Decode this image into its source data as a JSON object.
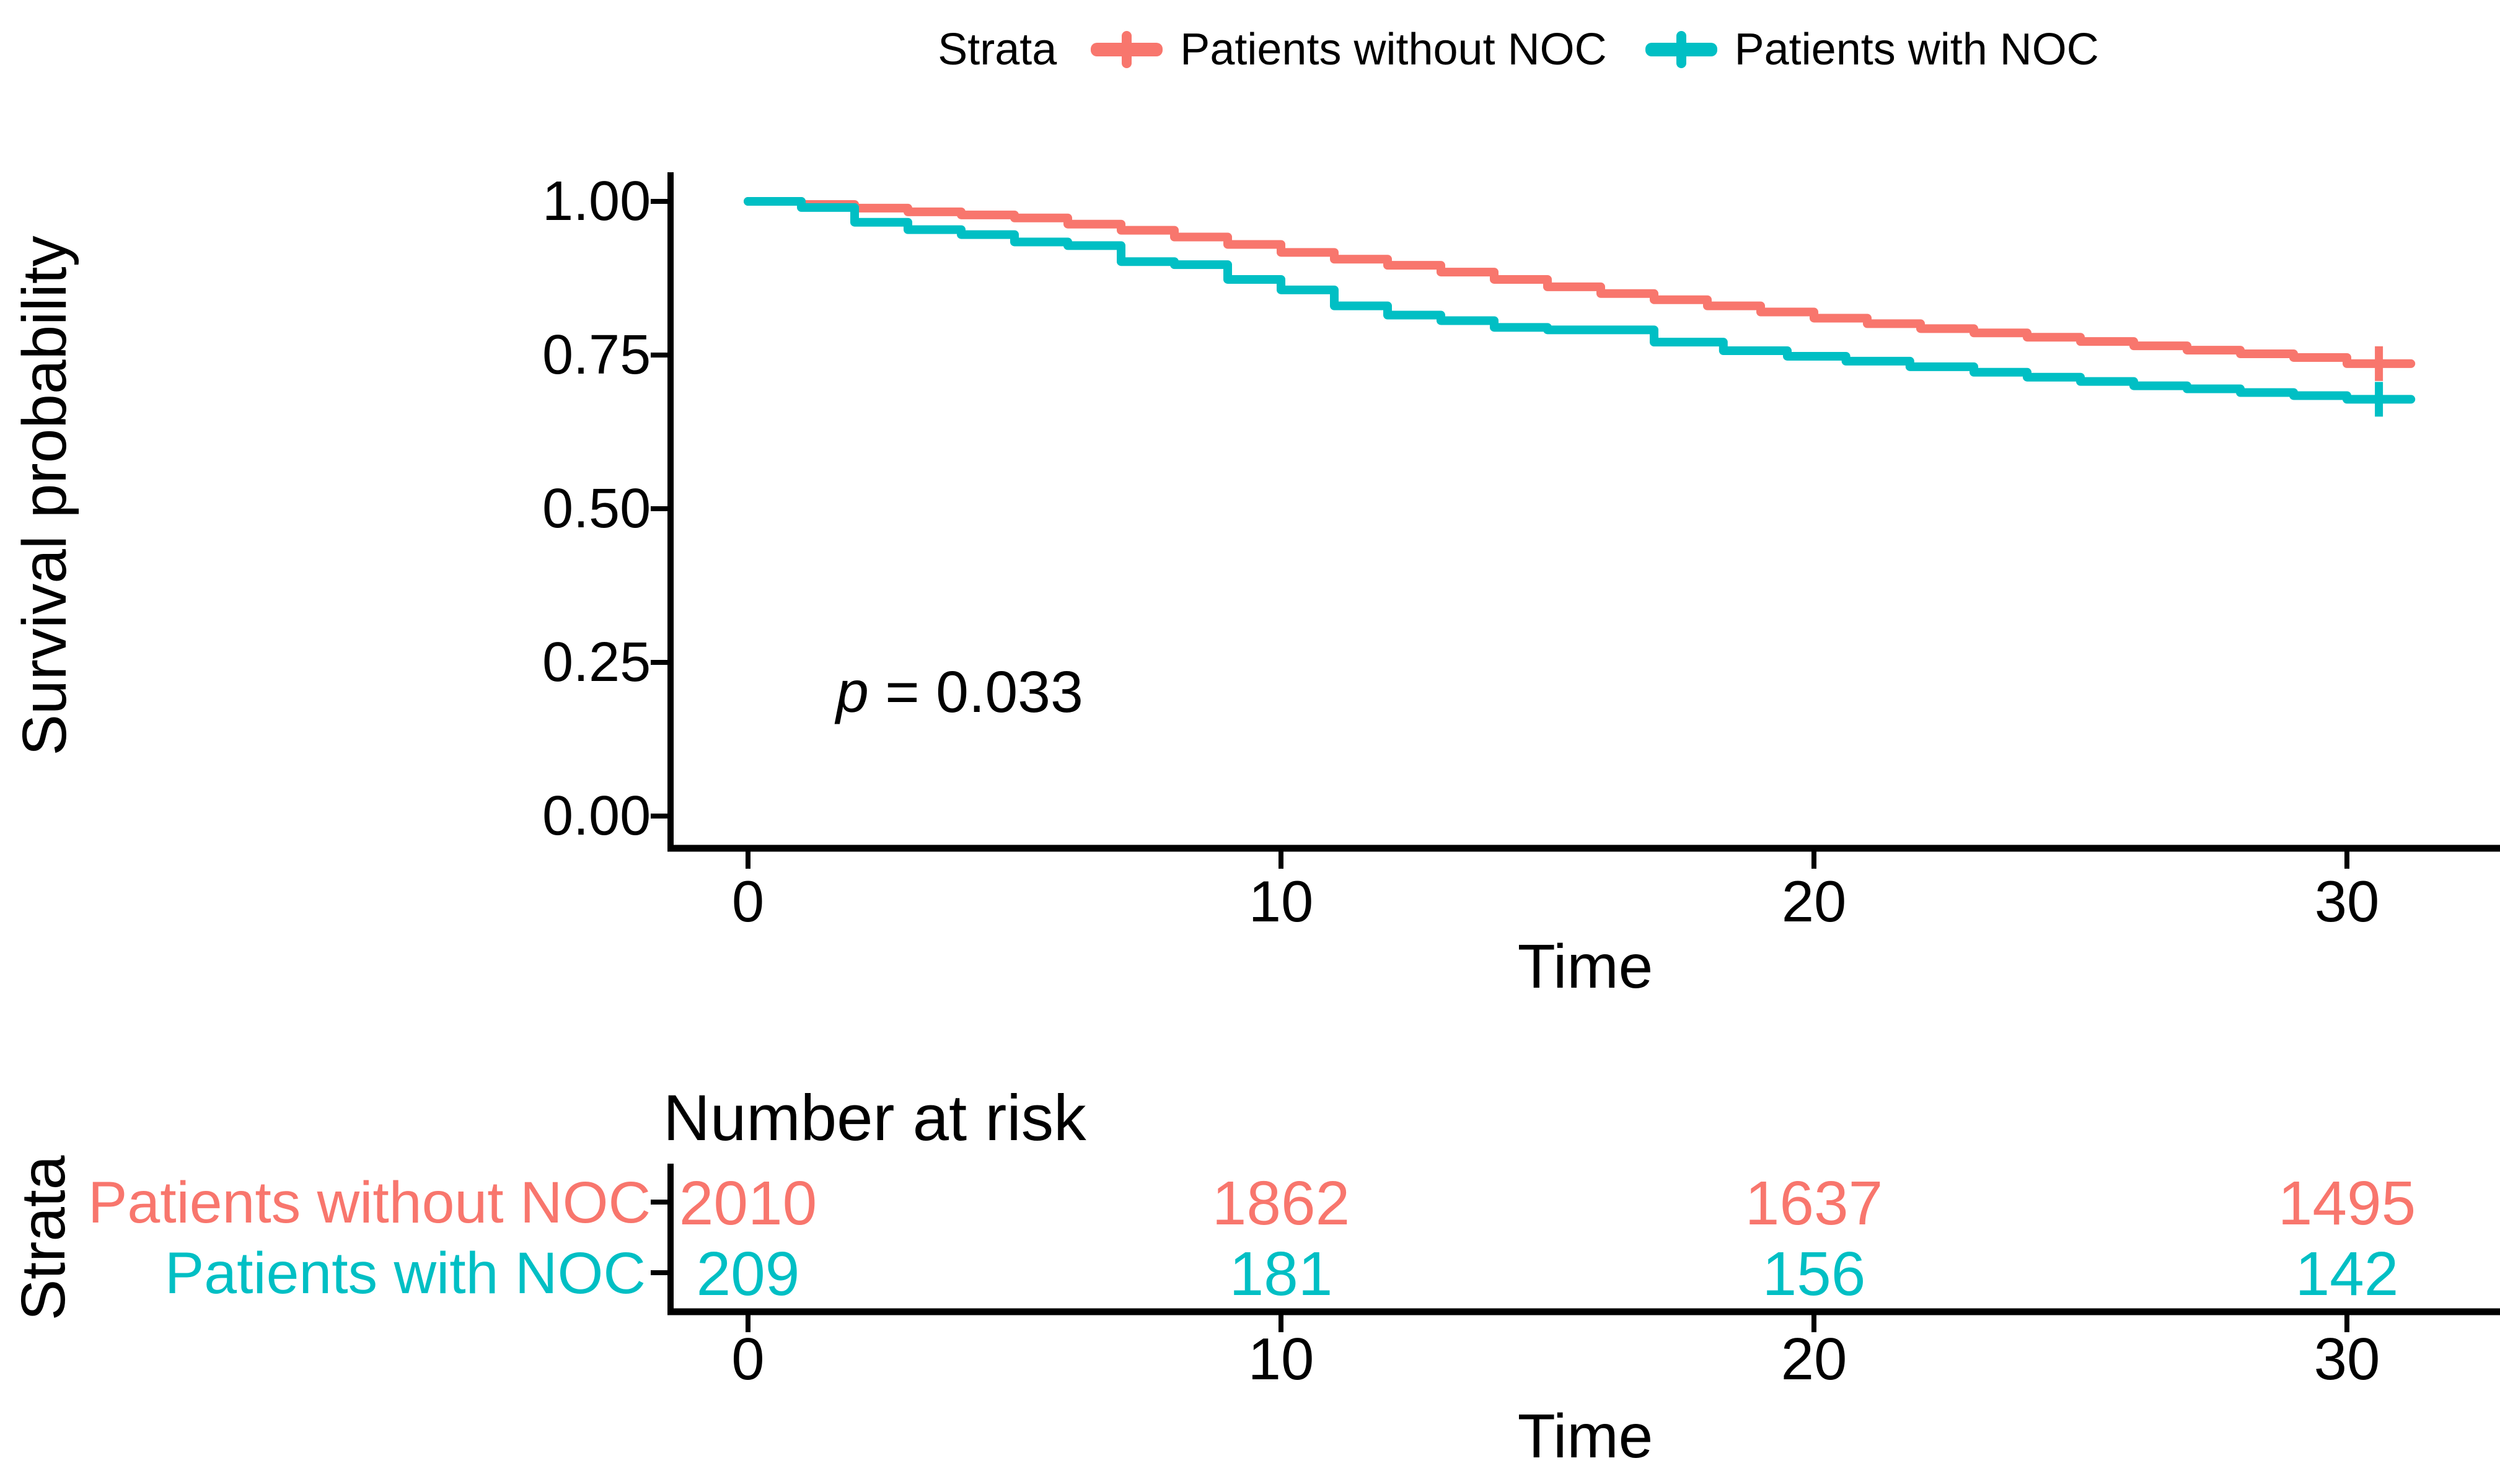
{
  "figure": {
    "legend": {
      "title": "Strata",
      "items": [
        {
          "label": "Patients without NOC",
          "color": "#F8766D"
        },
        {
          "label": "Patients with NOC",
          "color": "#00BFC4"
        }
      ]
    },
    "y_axis": {
      "title": "Survival probability",
      "ticks": [
        "1.00",
        "0.75",
        "0.50",
        "0.25",
        "0.00"
      ]
    },
    "x_axis": {
      "title": "Time",
      "ticks": [
        "0",
        "10",
        "20",
        "30"
      ]
    },
    "annotation": {
      "p_italic": "p",
      "p_rest": " = 0.033"
    },
    "risk_table": {
      "title": "Number at risk",
      "axis_title": "Strata",
      "x_axis": {
        "title": "Time",
        "ticks": [
          "0",
          "10",
          "20",
          "30"
        ]
      },
      "rows": [
        {
          "label": "Patients without NOC",
          "color": "#F8766D",
          "values": [
            "2010",
            "1862",
            "1637",
            "1495"
          ]
        },
        {
          "label": "Patients with NOC",
          "color": "#00BFC4",
          "values": [
            "209",
            "181",
            "156",
            "142"
          ]
        }
      ]
    }
  },
  "chart_data": {
    "type": "line",
    "subtype": "kaplan-meier-step",
    "title": "",
    "xlabel": "Time",
    "ylabel": "Survival probability",
    "xlim": [
      0,
      32
    ],
    "ylim": [
      0,
      1
    ],
    "x_ticks": [
      0,
      10,
      20,
      30
    ],
    "y_ticks": [
      1.0,
      0.75,
      0.5,
      0.25,
      0.0
    ],
    "grid": false,
    "legend_position": "top",
    "p_value": "p = 0.033",
    "series": [
      {
        "name": "Patients without NOC",
        "color": "#F8766D",
        "end_time": 31.2,
        "censor_time": 30.6,
        "points": [
          [
            0,
            1.0
          ],
          [
            1,
            0.995
          ],
          [
            2,
            0.989
          ],
          [
            3,
            0.983
          ],
          [
            4,
            0.978
          ],
          [
            5,
            0.973
          ],
          [
            6,
            0.963
          ],
          [
            7,
            0.953
          ],
          [
            8,
            0.942
          ],
          [
            9,
            0.93
          ],
          [
            10,
            0.917
          ],
          [
            11,
            0.906
          ],
          [
            12,
            0.896
          ],
          [
            13,
            0.885
          ],
          [
            14,
            0.873
          ],
          [
            15,
            0.861
          ],
          [
            16,
            0.85
          ],
          [
            17,
            0.84
          ],
          [
            18,
            0.83
          ],
          [
            19,
            0.82
          ],
          [
            20,
            0.81
          ],
          [
            21,
            0.801
          ],
          [
            22,
            0.793
          ],
          [
            23,
            0.786
          ],
          [
            24,
            0.779
          ],
          [
            25,
            0.772
          ],
          [
            26,
            0.765
          ],
          [
            27,
            0.758
          ],
          [
            28,
            0.752
          ],
          [
            29,
            0.746
          ],
          [
            30,
            0.736
          ]
        ]
      },
      {
        "name": "Patients with NOC",
        "color": "#00BFC4",
        "end_time": 31.2,
        "censor_time": 30.6,
        "points": [
          [
            0,
            1.0
          ],
          [
            1,
            0.99
          ],
          [
            2,
            0.966
          ],
          [
            3,
            0.954
          ],
          [
            4,
            0.946
          ],
          [
            5,
            0.934
          ],
          [
            6,
            0.928
          ],
          [
            7,
            0.902
          ],
          [
            8,
            0.897
          ],
          [
            9,
            0.873
          ],
          [
            10,
            0.856
          ],
          [
            11,
            0.83
          ],
          [
            12,
            0.815
          ],
          [
            13,
            0.806
          ],
          [
            14,
            0.795
          ],
          [
            15,
            0.791
          ],
          [
            17,
            0.771
          ],
          [
            18.3,
            0.757
          ],
          [
            19.5,
            0.748
          ],
          [
            20.6,
            0.74
          ],
          [
            21.8,
            0.731
          ],
          [
            23,
            0.722
          ],
          [
            24,
            0.714
          ],
          [
            25,
            0.707
          ],
          [
            26,
            0.7
          ],
          [
            27,
            0.695
          ],
          [
            28,
            0.689
          ],
          [
            29,
            0.684
          ],
          [
            30,
            0.678
          ]
        ]
      }
    ],
    "number_at_risk": {
      "times": [
        0,
        10,
        20,
        30
      ],
      "series": [
        {
          "name": "Patients without NOC",
          "values": [
            2010,
            1862,
            1637,
            1495
          ]
        },
        {
          "name": "Patients with NOC",
          "values": [
            209,
            181,
            156,
            142
          ]
        }
      ]
    }
  }
}
